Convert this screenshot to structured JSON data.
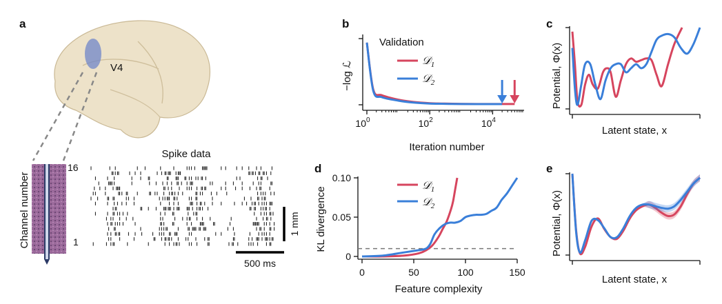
{
  "figure": {
    "panel_labels": [
      "a",
      "b",
      "c",
      "d",
      "e"
    ],
    "colors": {
      "d1": "#d6455e",
      "d2": "#3a7fd9",
      "axis": "#111111",
      "dash": "#777777"
    }
  },
  "panel_a": {
    "brain_region_label": "V4",
    "raster_title": "Spike data",
    "y_axis_label": "Channel number",
    "channel_top": "16",
    "channel_bottom": "1",
    "scale_vertical": "1 mm",
    "scale_horizontal": "500 ms"
  },
  "chart_data": [
    {
      "panel": "b",
      "type": "line",
      "title": "",
      "legend_title": "Validation",
      "xlabel": "Iteration number",
      "ylabel": "−log ℒ",
      "xscale": "log",
      "xlim": [
        1,
        100000
      ],
      "xticks": [
        "10",
        "2",
        "4"
      ],
      "xticks_full": [
        "10^0",
        "10^2",
        "10^4"
      ],
      "ylim": [
        0,
        1
      ],
      "series": [
        {
          "name": "𝒟",
          "sub": "1",
          "color": "#d6455e",
          "x": [
            1,
            1.6,
            3,
            10,
            30,
            100,
            300,
            1000,
            10000,
            50000
          ],
          "y": [
            0.98,
            0.24,
            0.15,
            0.08,
            0.045,
            0.025,
            0.018,
            0.014,
            0.012,
            0.012
          ]
        },
        {
          "name": "𝒟",
          "sub": "2",
          "color": "#3a7fd9",
          "x": [
            1,
            1.6,
            3,
            10,
            30,
            100,
            300,
            1000,
            10000,
            20000
          ],
          "y": [
            0.98,
            0.22,
            0.12,
            0.065,
            0.035,
            0.02,
            0.015,
            0.012,
            0.011,
            0.011
          ]
        }
      ],
      "arrows": [
        {
          "series": "𝒟2",
          "x": 20000
        },
        {
          "series": "𝒟1",
          "x": 50000
        }
      ]
    },
    {
      "panel": "c",
      "type": "line",
      "xlabel": "Latent state, x",
      "ylabel": "Potential, Φ(x)",
      "xlim": [
        0,
        1
      ],
      "ylim": [
        0,
        1
      ],
      "series": [
        {
          "name": "𝒟1",
          "color": "#d6455e",
          "x": [
            0.0,
            0.02,
            0.04,
            0.07,
            0.1,
            0.13,
            0.16,
            0.2,
            0.24,
            0.27,
            0.3,
            0.34,
            0.38,
            0.42,
            0.46,
            0.5,
            0.54,
            0.58,
            0.62,
            0.66,
            0.7,
            0.75,
            0.8,
            0.86
          ],
          "y": [
            0.95,
            0.55,
            0.1,
            0.05,
            0.3,
            0.42,
            0.3,
            0.25,
            0.45,
            0.5,
            0.45,
            0.15,
            0.35,
            0.55,
            0.62,
            0.58,
            0.6,
            0.62,
            0.6,
            0.42,
            0.28,
            0.55,
            0.8,
            1.0
          ]
        },
        {
          "name": "𝒟2",
          "color": "#3a7fd9",
          "x": [
            0.0,
            0.02,
            0.04,
            0.07,
            0.1,
            0.14,
            0.18,
            0.22,
            0.26,
            0.3,
            0.34,
            0.38,
            0.42,
            0.46,
            0.5,
            0.54,
            0.58,
            0.62,
            0.66,
            0.7,
            0.75,
            0.8,
            0.85,
            0.9,
            0.95,
            1.0
          ],
          "y": [
            0.75,
            0.25,
            0.05,
            0.3,
            0.55,
            0.55,
            0.3,
            0.12,
            0.35,
            0.5,
            0.55,
            0.55,
            0.45,
            0.5,
            0.55,
            0.5,
            0.55,
            0.7,
            0.85,
            0.9,
            0.92,
            0.88,
            0.75,
            0.68,
            0.8,
            1.0
          ]
        }
      ]
    },
    {
      "panel": "d",
      "type": "line",
      "xlabel": "Feature complexity",
      "ylabel": "KL divergence",
      "xlim": [
        0,
        150
      ],
      "ylim": [
        0,
        0.1
      ],
      "xticks": [
        "0",
        "50",
        "100",
        "150"
      ],
      "yticks": [
        "0",
        "0.05",
        "0.10"
      ],
      "threshold": 0.01,
      "series": [
        {
          "name": "𝒟",
          "sub": "1",
          "color": "#d6455e",
          "x": [
            0,
            20,
            40,
            55,
            62,
            68,
            74,
            78,
            82,
            86,
            88,
            90,
            92
          ],
          "y": [
            0.0,
            0.0,
            0.001,
            0.004,
            0.008,
            0.014,
            0.025,
            0.035,
            0.045,
            0.06,
            0.07,
            0.085,
            0.1
          ]
        },
        {
          "name": "𝒟",
          "sub": "2",
          "color": "#3a7fd9",
          "x": [
            0,
            20,
            40,
            55,
            62,
            66,
            70,
            75,
            80,
            85,
            90,
            95,
            100,
            105,
            110,
            115,
            120,
            125,
            130,
            135,
            140,
            145,
            150
          ],
          "y": [
            0.0,
            0.001,
            0.005,
            0.008,
            0.01,
            0.016,
            0.028,
            0.036,
            0.041,
            0.043,
            0.043,
            0.045,
            0.05,
            0.052,
            0.053,
            0.053,
            0.054,
            0.058,
            0.062,
            0.072,
            0.08,
            0.09,
            0.1
          ]
        }
      ]
    },
    {
      "panel": "e",
      "type": "line",
      "xlabel": "Latent state, x",
      "ylabel": "Potential, Φ(x)",
      "xlim": [
        0,
        1
      ],
      "ylim": [
        0,
        1
      ],
      "series": [
        {
          "name": "𝒟1",
          "color": "#d6455e",
          "x": [
            0.0,
            0.03,
            0.06,
            0.1,
            0.15,
            0.2,
            0.25,
            0.3,
            0.35,
            0.4,
            0.45,
            0.5,
            0.55,
            0.6,
            0.65,
            0.7,
            0.75,
            0.8,
            0.85,
            0.9,
            0.95,
            1.0
          ],
          "y": [
            1.0,
            0.3,
            0.02,
            0.1,
            0.35,
            0.45,
            0.32,
            0.22,
            0.2,
            0.3,
            0.45,
            0.55,
            0.6,
            0.62,
            0.58,
            0.52,
            0.48,
            0.5,
            0.6,
            0.75,
            0.88,
            0.95
          ]
        },
        {
          "name": "𝒟2",
          "color": "#3a7fd9",
          "x": [
            0.0,
            0.03,
            0.06,
            0.1,
            0.15,
            0.2,
            0.25,
            0.3,
            0.35,
            0.4,
            0.45,
            0.5,
            0.55,
            0.6,
            0.65,
            0.7,
            0.75,
            0.8,
            0.85,
            0.9,
            0.95,
            1.0
          ],
          "y": [
            1.0,
            0.28,
            0.03,
            0.18,
            0.42,
            0.43,
            0.33,
            0.22,
            0.22,
            0.33,
            0.48,
            0.58,
            0.62,
            0.62,
            0.6,
            0.58,
            0.57,
            0.6,
            0.68,
            0.78,
            0.88,
            0.95
          ]
        }
      ]
    }
  ]
}
